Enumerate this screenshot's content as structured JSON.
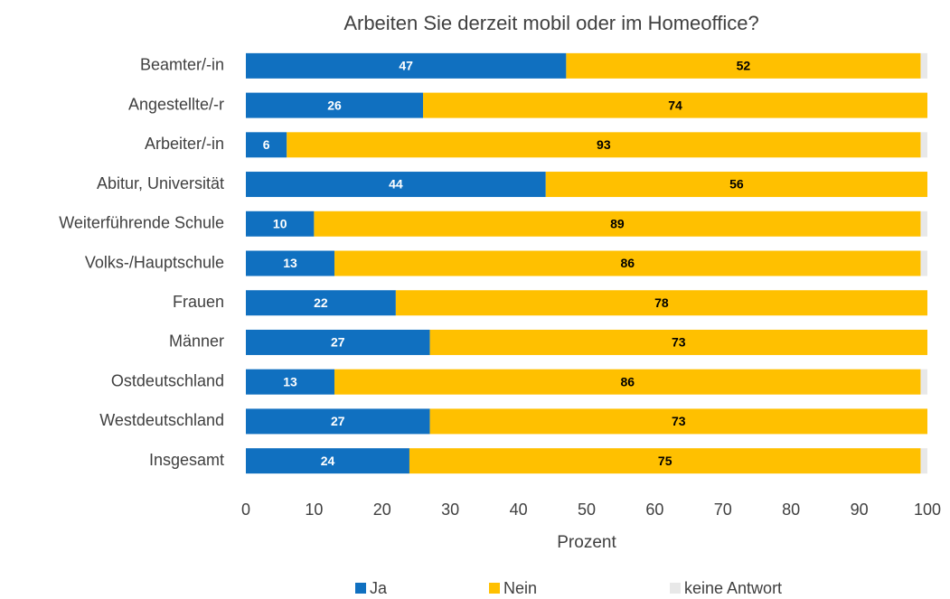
{
  "chart_data": {
    "type": "stacked_barh",
    "title": "Arbeiten Sie derzeit mobil oder im Homeoffice?",
    "x_label": "Prozent",
    "categories": [
      "Beamter/-in",
      "Angestellte/-r",
      "Arbeiter/-in",
      "Abitur, Universität",
      "Weiterführende Schule",
      "Volks-/Hauptschule",
      "Frauen",
      "Männer",
      "Ostdeutschland",
      "Westdeutschland",
      "Insgesamt"
    ],
    "series": [
      {
        "name": "Ja",
        "color": "#1070c0",
        "values": [
          47,
          26,
          6,
          44,
          10,
          13,
          22,
          27,
          13,
          27,
          24
        ]
      },
      {
        "name": "Nein",
        "color": "#ffc000",
        "values": [
          52,
          74,
          93,
          56,
          89,
          86,
          78,
          73,
          86,
          73,
          75
        ]
      },
      {
        "name": "keine Antwort",
        "color": "#e8e8e8",
        "values": [
          1,
          0,
          1,
          0,
          1,
          1,
          0,
          0,
          1,
          0,
          1
        ]
      }
    ],
    "xlim": [
      0,
      100
    ],
    "xticks": [
      0,
      10,
      20,
      30,
      40,
      50,
      60,
      70,
      80,
      90,
      100
    ],
    "grid": false,
    "legend": "bottom"
  }
}
